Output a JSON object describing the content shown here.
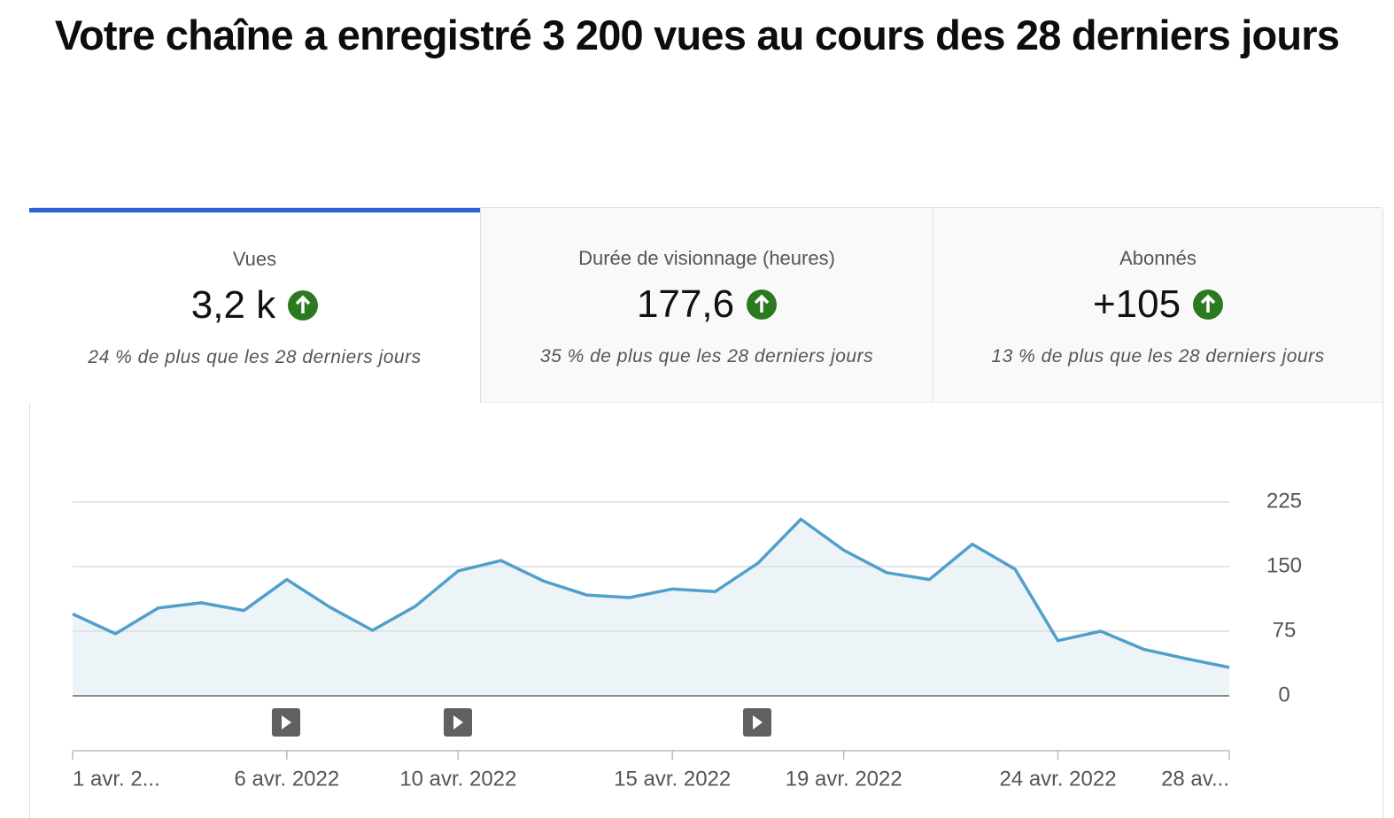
{
  "header": {
    "title": "Votre chaîne a enregistré 3 200 vues au cours des 28 derniers jours"
  },
  "tabs": [
    {
      "label": "Vues",
      "value": "3,2 k",
      "change": "24 % de plus que les 28 derniers jours"
    },
    {
      "label": "Durée de visionnage (heures)",
      "value": "177,6",
      "change": "35 % de plus que les 28 derniers jours"
    },
    {
      "label": "Abonnés",
      "value": "+105",
      "change": "13 % de plus que les 28 derniers jours"
    }
  ],
  "chart_data": {
    "type": "line",
    "categories": [
      "1 avr. 2...",
      null,
      null,
      null,
      null,
      "6 avr. 2022",
      null,
      null,
      null,
      "10 avr. 2022",
      null,
      null,
      null,
      null,
      "15 avr. 2022",
      null,
      null,
      null,
      "19 avr. 2022",
      null,
      null,
      null,
      null,
      "24 avr. 2022",
      null,
      null,
      null,
      "28 av..."
    ],
    "values": [
      95,
      72,
      102,
      108,
      99,
      135,
      103,
      76,
      104,
      145,
      157,
      133,
      117,
      114,
      124,
      121,
      154,
      205,
      169,
      143,
      135,
      176,
      147,
      64,
      75,
      54,
      43,
      33
    ],
    "color": "#529fcb",
    "fill": "#ecf4f8",
    "ylim": [
      0,
      225
    ],
    "yticks": [
      0,
      75,
      150,
      225
    ],
    "grid": true
  }
}
